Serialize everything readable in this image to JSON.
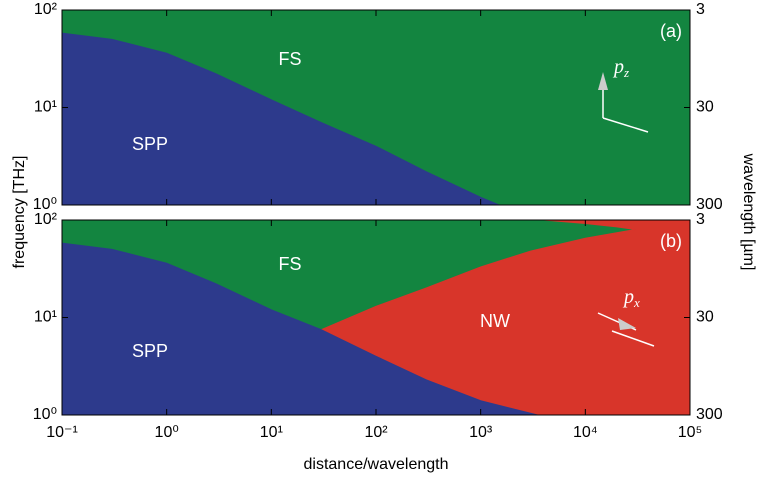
{
  "figure": {
    "ylabel": "frequency [THz]",
    "y2label": "wavelength [µm]"
  },
  "chart_data": [
    {
      "type": "area",
      "panel_label": "(a)",
      "log_x": true,
      "log_y": true,
      "xlim": [
        0.1,
        100000
      ],
      "xticks": [
        0.1,
        1,
        10,
        100,
        1000,
        10000,
        100000
      ],
      "ylim": [
        1,
        100
      ],
      "yticks": [
        {
          "value": 1,
          "label": "10⁰"
        },
        {
          "value": 10,
          "label": "10¹"
        },
        {
          "value": 100,
          "label": "10²"
        }
      ],
      "y2lim": [
        300,
        3
      ],
      "y2ticks": [
        3,
        30,
        300
      ],
      "regions": [
        {
          "label": "FS",
          "color": "#138540"
        },
        {
          "label": "SPP",
          "color": "#2d3a8c",
          "x": [
            0.1,
            0.3,
            1,
            3,
            10,
            30,
            100,
            300,
            1000,
            1500
          ],
          "values": [
            58,
            50,
            36,
            22,
            12,
            7,
            4,
            2.2,
            1.2,
            1
          ]
        }
      ],
      "dipole": {
        "symbol": "p",
        "subscript": "z"
      }
    },
    {
      "type": "area",
      "panel_label": "(b)",
      "log_x": true,
      "log_y": true,
      "xlim": [
        0.1,
        100000
      ],
      "xticks": [
        {
          "value": 0.1,
          "label": "10⁻¹"
        },
        {
          "value": 1,
          "label": "10⁰"
        },
        {
          "value": 10,
          "label": "10¹"
        },
        {
          "value": 100,
          "label": "10²"
        },
        {
          "value": 1000,
          "label": "10³"
        },
        {
          "value": 10000,
          "label": "10⁴"
        },
        {
          "value": 100000,
          "label": "10⁵"
        }
      ],
      "ylim": [
        1,
        100
      ],
      "yticks": [
        {
          "value": 1,
          "label": "10⁰"
        },
        {
          "value": 10,
          "label": "10¹"
        },
        {
          "value": 100,
          "label": "10²"
        }
      ],
      "y2lim": [
        300,
        3
      ],
      "y2ticks": [
        3,
        30,
        300
      ],
      "xlabel": "distance/wavelength",
      "regions": [
        {
          "label": "FS",
          "color": "#138540"
        },
        {
          "label": "NW",
          "color": "#d8352a",
          "x": [
            30,
            100,
            300,
            1000,
            3000,
            10000,
            30000
          ],
          "values": [
            7.5,
            13,
            20,
            33,
            48,
            65,
            80
          ],
          "x_upper": [
            4000,
            10000,
            20000,
            30000
          ],
          "values_upper": [
            100,
            92,
            85,
            80
          ]
        },
        {
          "label": "SPP",
          "color": "#2d3a8c",
          "x": [
            0.1,
            0.3,
            1,
            3,
            10,
            30,
            100,
            300,
            1000,
            3500
          ],
          "values": [
            58,
            50,
            36,
            22,
            12,
            7.5,
            4,
            2.3,
            1.4,
            1
          ]
        }
      ],
      "dipole": {
        "symbol": "p",
        "subscript": "x"
      }
    }
  ]
}
